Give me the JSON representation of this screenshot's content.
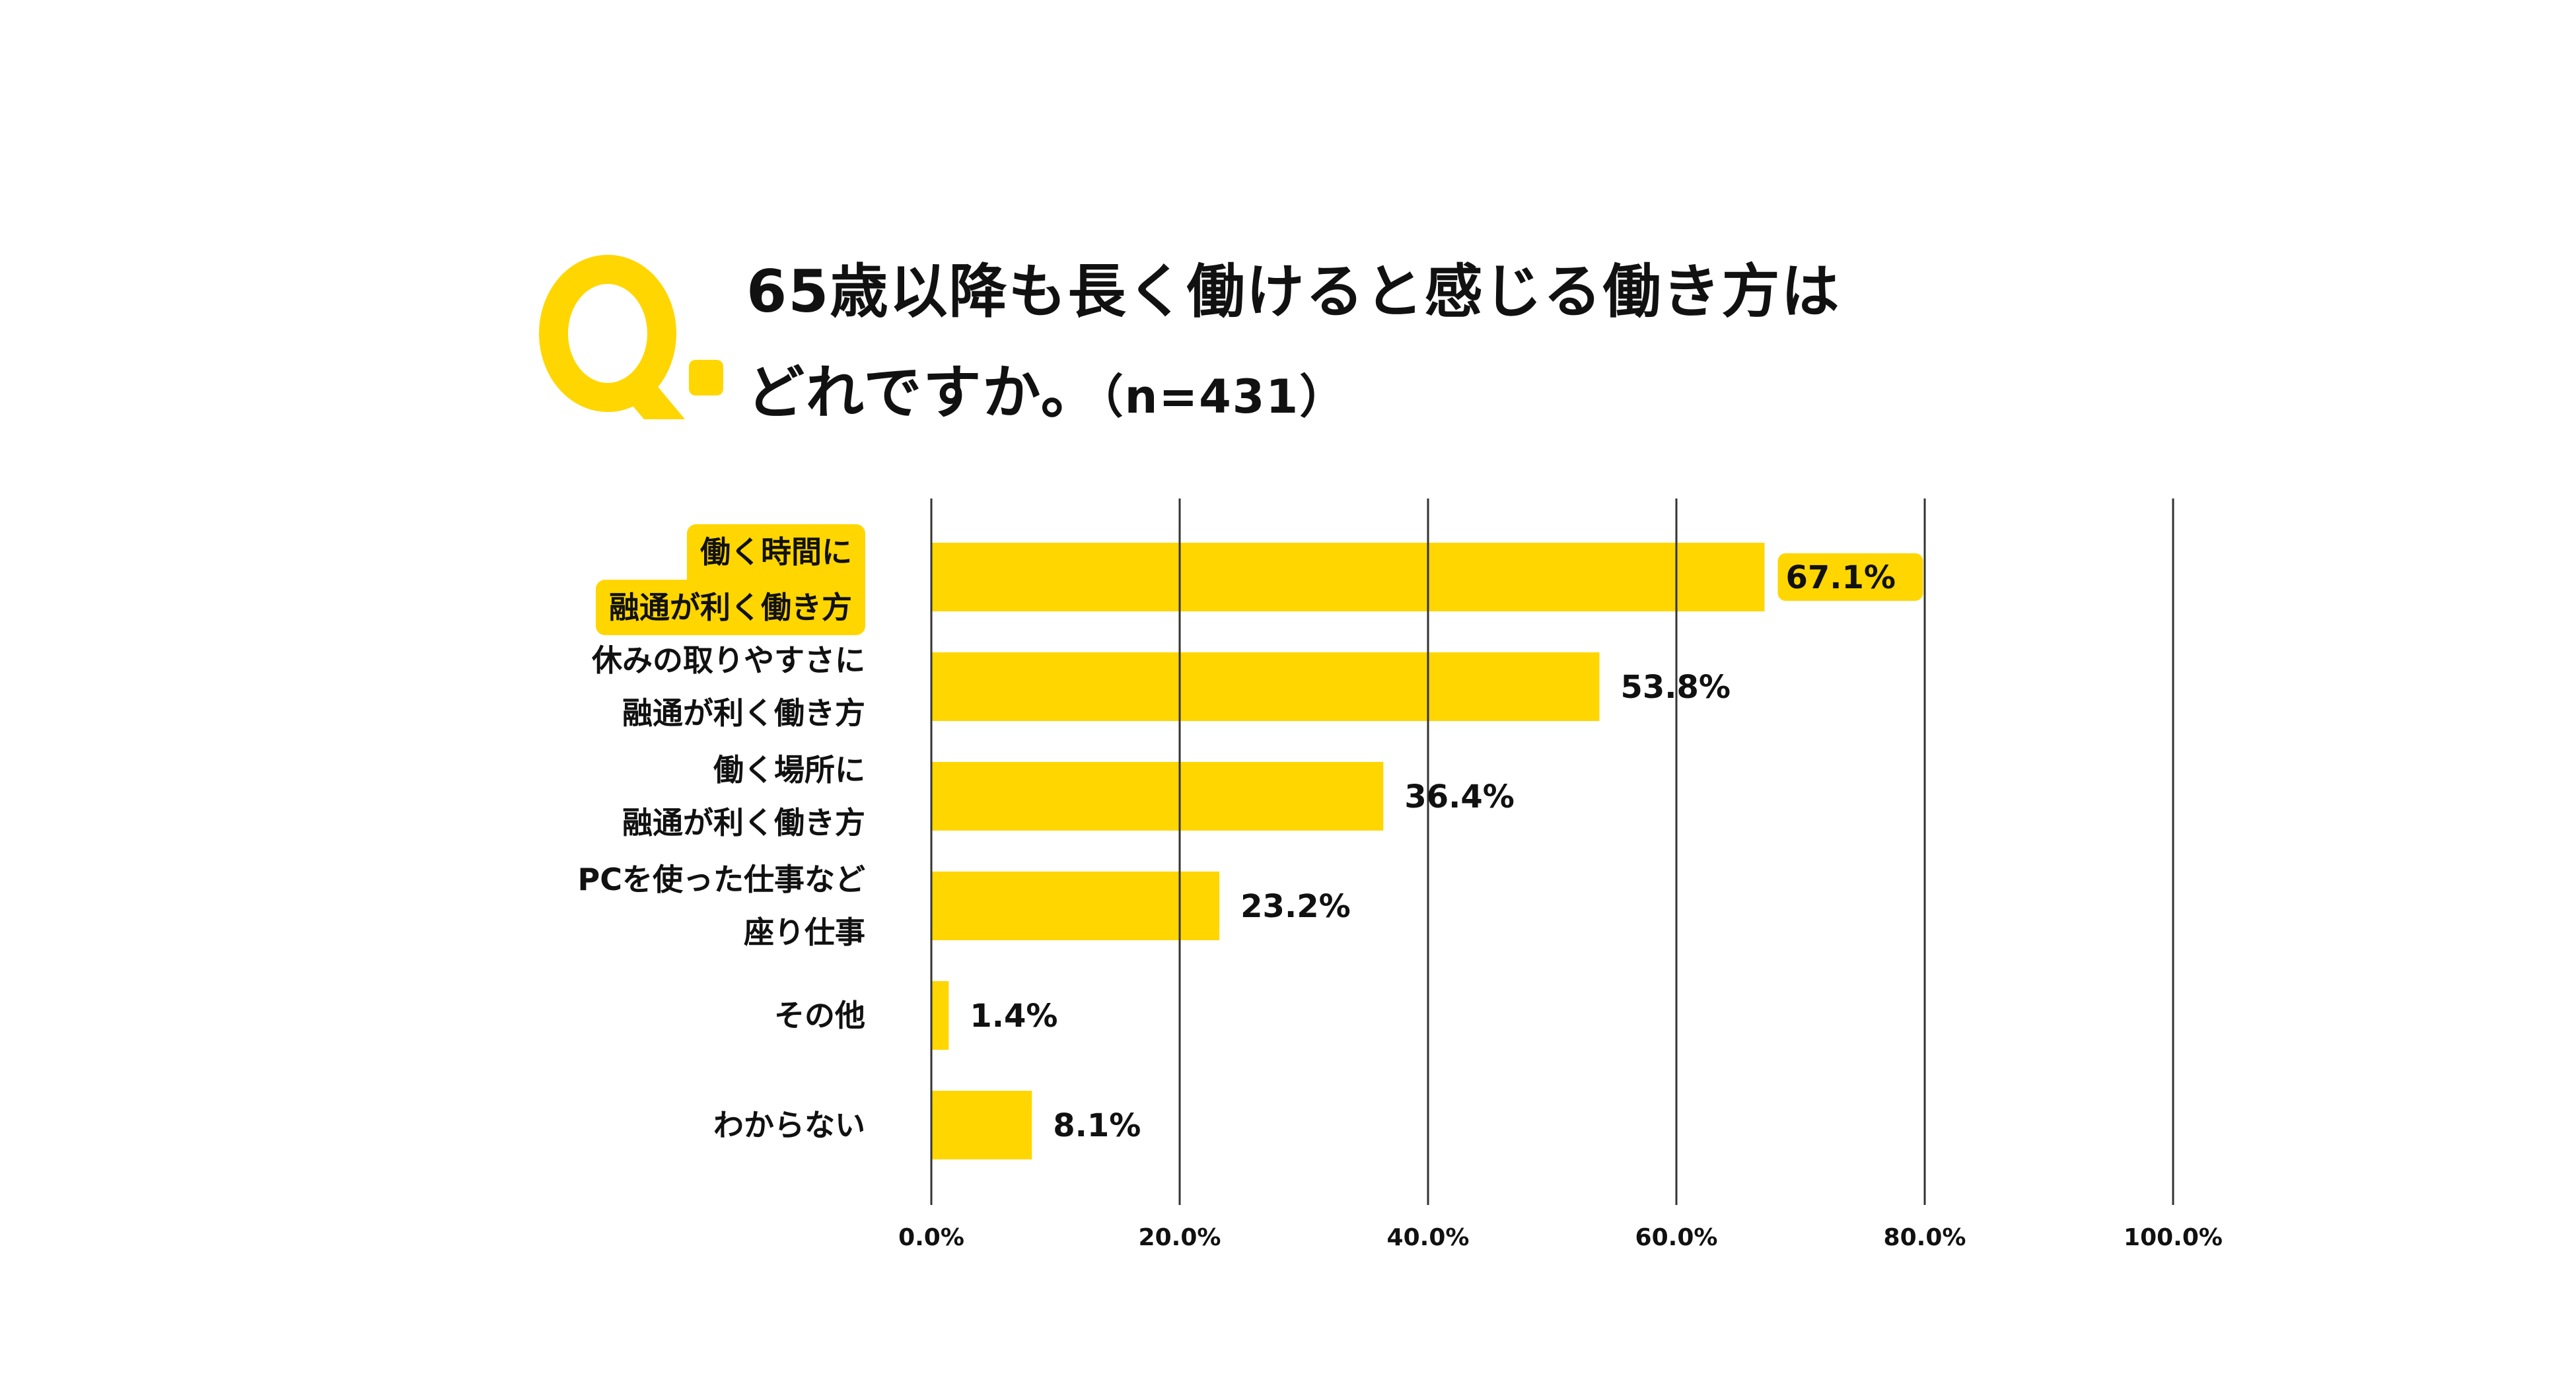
{
  "header": {
    "q_mark": "Q.",
    "title_line1": "65歳以降も長く働けると感じる働き方は",
    "title_line2": "どれですか。",
    "title_sample": "（n=431）"
  },
  "colors": {
    "bar": "#FFD600",
    "grid": "#333333",
    "text": "#111111",
    "highlight": "#FFD600"
  },
  "chart_data": {
    "type": "bar",
    "orientation": "horizontal",
    "categories": [
      [
        "働く時間に",
        "融通が利く働き方"
      ],
      [
        "休みの取りやすさに",
        "融通が利く働き方"
      ],
      [
        "働く場所に",
        "融通が利く働き方"
      ],
      [
        "PCを使った仕事など",
        "座り仕事"
      ],
      [
        "その他"
      ],
      [
        "わからない"
      ]
    ],
    "values": [
      67.1,
      53.8,
      36.4,
      23.2,
      1.4,
      8.1
    ],
    "value_labels": [
      "67.1%",
      "53.8%",
      "36.4%",
      "23.2%",
      "1.4%",
      "8.1%"
    ],
    "highlight_index": 0,
    "xlim": [
      0,
      100
    ],
    "xticks": [
      0,
      20,
      40,
      60,
      80,
      100
    ],
    "xtick_labels": [
      "0.0%",
      "20.0%",
      "40.0%",
      "60.0%",
      "80.0%",
      "100.0%"
    ],
    "grid": true
  }
}
